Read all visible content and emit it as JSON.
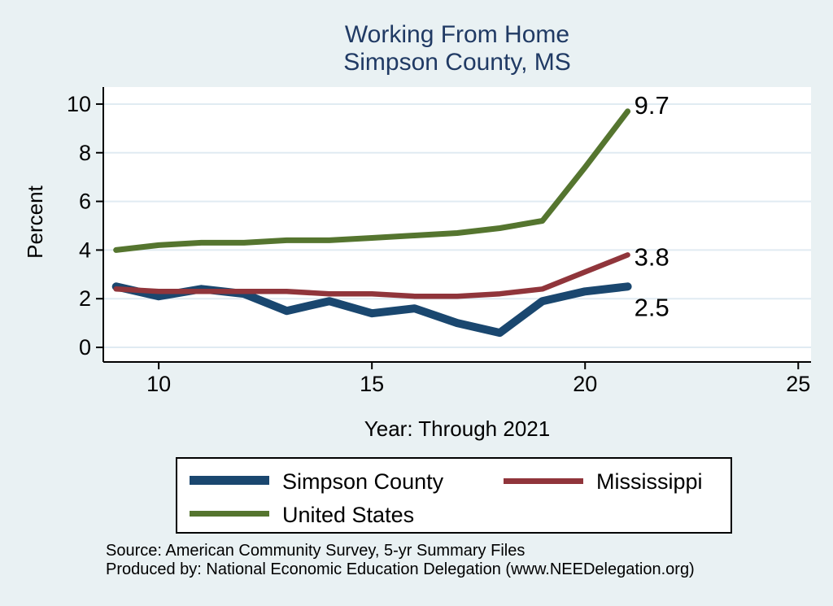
{
  "title": {
    "line1": "Working From Home",
    "line2": "Simpson County, MS"
  },
  "chart_data": {
    "type": "line",
    "x": [
      9,
      10,
      11,
      12,
      13,
      14,
      15,
      16,
      17,
      18,
      19,
      20,
      21
    ],
    "series": [
      {
        "name": "Simpson County",
        "color": "#1a476f",
        "width": 10,
        "values": [
          2.5,
          2.1,
          2.4,
          2.2,
          1.5,
          1.9,
          1.4,
          1.6,
          1.0,
          0.6,
          1.9,
          2.3,
          2.5
        ],
        "end_label": "2.5"
      },
      {
        "name": "Mississippi",
        "color": "#90353b",
        "width": 6.5,
        "values": [
          2.4,
          2.3,
          2.3,
          2.3,
          2.3,
          2.2,
          2.2,
          2.1,
          2.1,
          2.2,
          2.4,
          3.1,
          3.8
        ],
        "end_label": "3.8"
      },
      {
        "name": "United States",
        "color": "#55752f",
        "width": 7,
        "values": [
          4.0,
          4.2,
          4.3,
          4.3,
          4.4,
          4.4,
          4.5,
          4.6,
          4.7,
          4.9,
          5.2,
          7.4,
          9.7
        ],
        "end_label": "9.7"
      }
    ],
    "xlabel": "Year: Through 2021",
    "ylabel": "Percent",
    "xticks": [
      10,
      15,
      20,
      25
    ],
    "yticks": [
      0,
      2,
      4,
      6,
      8,
      10
    ],
    "xlim": [
      8.7,
      25.3
    ],
    "ylim": [
      -0.6,
      10.7
    ],
    "grid": "horizontal",
    "grid_color": "#e0ebf2",
    "plot_background": "#ffffff",
    "legend_position": "bottom"
  },
  "footer": {
    "line1": "Source: American Community Survey, 5-yr Summary Files",
    "line2": "Produced by: National Economic Education Delegation (www.NEEDelegation.org)"
  }
}
